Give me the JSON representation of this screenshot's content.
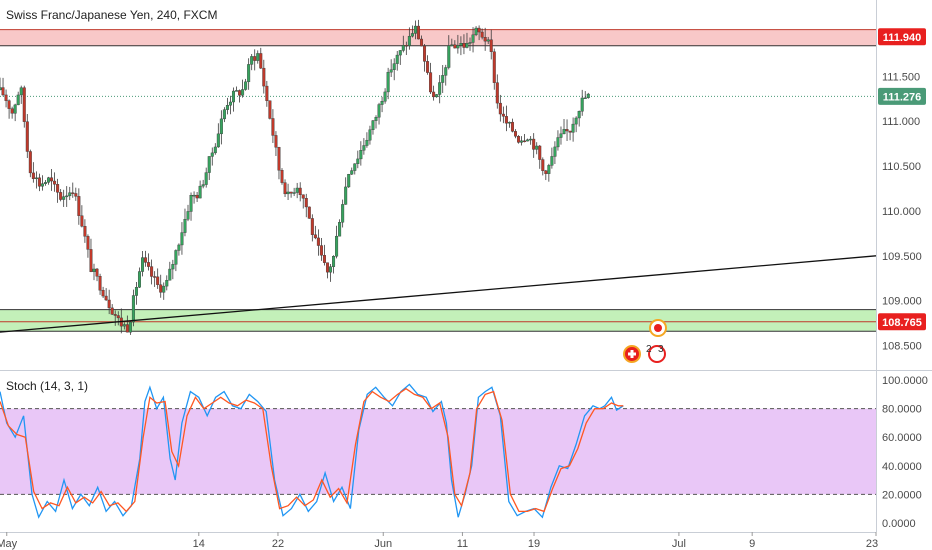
{
  "header": {
    "title": "Swiss Franc/Japanese Yen, 240, FXCM"
  },
  "indicator": {
    "label": "Stoch (14, 3, 1)",
    "k_color": "#2196f3",
    "d_color": "#ff5722",
    "band_color": "#e9c7f7"
  },
  "price_tags": {
    "resistance": {
      "label": "111.940",
      "color": "#e8201f"
    },
    "last": {
      "label": "111.276",
      "color": "#4a9a77"
    },
    "support": {
      "label": "108.765",
      "color": "#e8201f"
    }
  },
  "markers": {
    "m2": "2",
    "m3": "3"
  },
  "colors": {
    "up": "#36a35e",
    "down": "#c0392b",
    "resistance_zone": "#f8c8c8",
    "support_zone": "#c3f0b9",
    "trendline": "#111111"
  },
  "chart_data": [
    {
      "type": "candlestick",
      "title": "Swiss Franc/Japanese Yen, 240, FXCM",
      "ylim": [
        108.25,
        112.35
      ],
      "y_ticks": [
        "111.500",
        "111.000",
        "110.500",
        "110.000",
        "109.500",
        "109.000",
        "108.500"
      ],
      "y_tick_values": [
        111.5,
        111.0,
        110.5,
        110.0,
        109.5,
        109.0,
        108.5
      ],
      "x_ticks": [
        "May",
        "14",
        "22",
        "Jun",
        "11",
        "19",
        "Jul",
        "9",
        "23"
      ],
      "x_tick_values": [
        8,
        236,
        330,
        455,
        549,
        634,
        806,
        893,
        1040
      ],
      "xlim": [
        0,
        1040
      ],
      "resistance_zone": [
        111.84,
        112.02
      ],
      "support_zone": [
        108.66,
        108.9
      ],
      "support_level": 108.765,
      "last_price": 111.276,
      "trendline": [
        [
          0,
          108.65
        ],
        [
          1040,
          109.5
        ]
      ],
      "anchors": [
        [
          0,
          111.35
        ],
        [
          8,
          111.3
        ],
        [
          18,
          111.1
        ],
        [
          28,
          111.4
        ],
        [
          38,
          110.5
        ],
        [
          50,
          110.3
        ],
        [
          62,
          110.35
        ],
        [
          75,
          110.15
        ],
        [
          90,
          110.25
        ],
        [
          100,
          109.9
        ],
        [
          112,
          109.35
        ],
        [
          124,
          109.15
        ],
        [
          134,
          108.95
        ],
        [
          146,
          108.75
        ],
        [
          156,
          108.7
        ],
        [
          164,
          109.1
        ],
        [
          172,
          109.45
        ],
        [
          182,
          109.3
        ],
        [
          192,
          109.15
        ],
        [
          200,
          109.15
        ],
        [
          208,
          109.4
        ],
        [
          220,
          109.8
        ],
        [
          230,
          110.15
        ],
        [
          240,
          110.2
        ],
        [
          252,
          110.55
        ],
        [
          262,
          110.85
        ],
        [
          272,
          111.2
        ],
        [
          282,
          111.3
        ],
        [
          292,
          111.35
        ],
        [
          302,
          111.7
        ],
        [
          310,
          111.75
        ],
        [
          318,
          111.35
        ],
        [
          326,
          110.95
        ],
        [
          336,
          110.4
        ],
        [
          346,
          110.15
        ],
        [
          356,
          110.3
        ],
        [
          366,
          110.1
        ],
        [
          376,
          109.7
        ],
        [
          384,
          109.5
        ],
        [
          392,
          109.3
        ],
        [
          400,
          109.5
        ],
        [
          408,
          110.0
        ],
        [
          418,
          110.45
        ],
        [
          428,
          110.6
        ],
        [
          438,
          110.8
        ],
        [
          448,
          111.0
        ],
        [
          458,
          111.3
        ],
        [
          468,
          111.6
        ],
        [
          478,
          111.75
        ],
        [
          488,
          111.9
        ],
        [
          496,
          112.05
        ],
        [
          504,
          111.85
        ],
        [
          512,
          111.45
        ],
        [
          520,
          111.2
        ],
        [
          528,
          111.45
        ],
        [
          538,
          111.85
        ],
        [
          548,
          111.85
        ],
        [
          558,
          111.85
        ],
        [
          568,
          112.0
        ],
        [
          578,
          111.95
        ],
        [
          586,
          111.8
        ],
        [
          594,
          111.2
        ],
        [
          602,
          111.0
        ],
        [
          612,
          110.9
        ],
        [
          620,
          110.8
        ],
        [
          630,
          110.85
        ],
        [
          640,
          110.7
        ],
        [
          648,
          110.45
        ],
        [
          656,
          110.5
        ],
        [
          664,
          110.75
        ],
        [
          672,
          110.85
        ],
        [
          680,
          110.9
        ],
        [
          688,
          111.1
        ],
        [
          696,
          111.25
        ],
        [
          702,
          111.28
        ]
      ]
    },
    {
      "type": "line",
      "title": "Stoch (14, 3, 1)",
      "ylim": [
        -5,
        105
      ],
      "y_ticks": [
        "100.0000",
        "80.0000",
        "60.0000",
        "40.0000",
        "20.0000",
        "0.0000"
      ],
      "y_tick_values": [
        100,
        80,
        60,
        40,
        20,
        0
      ],
      "band": [
        20,
        80
      ],
      "series": [
        {
          "color": "#2196f3",
          "values": [
            [
              0,
              92
            ],
            [
              8,
              70
            ],
            [
              18,
              60
            ],
            [
              28,
              75
            ],
            [
              38,
              20
            ],
            [
              46,
              4
            ],
            [
              56,
              15
            ],
            [
              66,
              8
            ],
            [
              76,
              30
            ],
            [
              86,
              10
            ],
            [
              96,
              20
            ],
            [
              106,
              12
            ],
            [
              116,
              25
            ],
            [
              126,
              8
            ],
            [
              136,
              15
            ],
            [
              146,
              5
            ],
            [
              156,
              12
            ],
            [
              166,
              45
            ],
            [
              172,
              85
            ],
            [
              178,
              95
            ],
            [
              186,
              80
            ],
            [
              194,
              88
            ],
            [
              202,
              45
            ],
            [
              208,
              30
            ],
            [
              216,
              70
            ],
            [
              226,
              92
            ],
            [
              236,
              88
            ],
            [
              246,
              75
            ],
            [
              256,
              88
            ],
            [
              266,
              92
            ],
            [
              276,
              82
            ],
            [
              286,
              80
            ],
            [
              296,
              90
            ],
            [
              306,
              85
            ],
            [
              316,
              78
            ],
            [
              326,
              30
            ],
            [
              336,
              5
            ],
            [
              346,
              10
            ],
            [
              356,
              20
            ],
            [
              366,
              8
            ],
            [
              376,
              15
            ],
            [
              386,
              35
            ],
            [
              396,
              15
            ],
            [
              406,
              25
            ],
            [
              416,
              10
            ],
            [
              426,
              65
            ],
            [
              436,
              90
            ],
            [
              446,
              95
            ],
            [
              456,
              88
            ],
            [
              466,
              82
            ],
            [
              476,
              92
            ],
            [
              486,
              97
            ],
            [
              496,
              90
            ],
            [
              506,
              88
            ],
            [
              514,
              78
            ],
            [
              524,
              85
            ],
            [
              530,
              70
            ],
            [
              536,
              30
            ],
            [
              544,
              4
            ],
            [
              552,
              20
            ],
            [
              560,
              40
            ],
            [
              568,
              88
            ],
            [
              576,
              92
            ],
            [
              584,
              95
            ],
            [
              594,
              75
            ],
            [
              604,
              15
            ],
            [
              614,
              5
            ],
            [
              624,
              8
            ],
            [
              634,
              10
            ],
            [
              644,
              4
            ],
            [
              654,
              25
            ],
            [
              664,
              40
            ],
            [
              674,
              38
            ],
            [
              684,
              55
            ],
            [
              694,
              75
            ],
            [
              704,
              82
            ],
            [
              712,
              80
            ],
            [
              718,
              82
            ],
            [
              726,
              88
            ],
            [
              732,
              79
            ],
            [
              740,
              82
            ]
          ]
        },
        {
          "color": "#ff5722",
          "values": [
            [
              0,
              85
            ],
            [
              10,
              68
            ],
            [
              20,
              62
            ],
            [
              30,
              60
            ],
            [
              40,
              22
            ],
            [
              50,
              10
            ],
            [
              60,
              14
            ],
            [
              70,
              12
            ],
            [
              80,
              25
            ],
            [
              90,
              14
            ],
            [
              100,
              18
            ],
            [
              110,
              14
            ],
            [
              120,
              22
            ],
            [
              130,
              12
            ],
            [
              140,
              14
            ],
            [
              150,
              8
            ],
            [
              160,
              15
            ],
            [
              170,
              60
            ],
            [
              178,
              88
            ],
            [
              186,
              84
            ],
            [
              196,
              85
            ],
            [
              204,
              50
            ],
            [
              212,
              40
            ],
            [
              222,
              75
            ],
            [
              232,
              88
            ],
            [
              242,
              80
            ],
            [
              252,
              84
            ],
            [
              262,
              88
            ],
            [
              272,
              84
            ],
            [
              282,
              82
            ],
            [
              292,
              86
            ],
            [
              302,
              84
            ],
            [
              312,
              80
            ],
            [
              322,
              40
            ],
            [
              332,
              10
            ],
            [
              342,
              12
            ],
            [
              352,
              18
            ],
            [
              362,
              12
            ],
            [
              372,
              16
            ],
            [
              382,
              30
            ],
            [
              392,
              18
            ],
            [
              402,
              24
            ],
            [
              412,
              14
            ],
            [
              422,
              55
            ],
            [
              432,
              85
            ],
            [
              442,
              92
            ],
            [
              452,
              88
            ],
            [
              462,
              85
            ],
            [
              472,
              90
            ],
            [
              482,
              94
            ],
            [
              492,
              90
            ],
            [
              502,
              88
            ],
            [
              512,
              80
            ],
            [
              522,
              84
            ],
            [
              532,
              60
            ],
            [
              540,
              20
            ],
            [
              548,
              12
            ],
            [
              558,
              35
            ],
            [
              566,
              80
            ],
            [
              576,
              90
            ],
            [
              586,
              92
            ],
            [
              596,
              72
            ],
            [
              606,
              20
            ],
            [
              616,
              8
            ],
            [
              626,
              8
            ],
            [
              636,
              10
            ],
            [
              646,
              8
            ],
            [
              656,
              24
            ],
            [
              666,
              38
            ],
            [
              676,
              40
            ],
            [
              686,
              52
            ],
            [
              696,
              70
            ],
            [
              706,
              80
            ],
            [
              716,
              80
            ],
            [
              726,
              84
            ],
            [
              734,
              82
            ],
            [
              740,
              82
            ]
          ]
        }
      ]
    }
  ]
}
